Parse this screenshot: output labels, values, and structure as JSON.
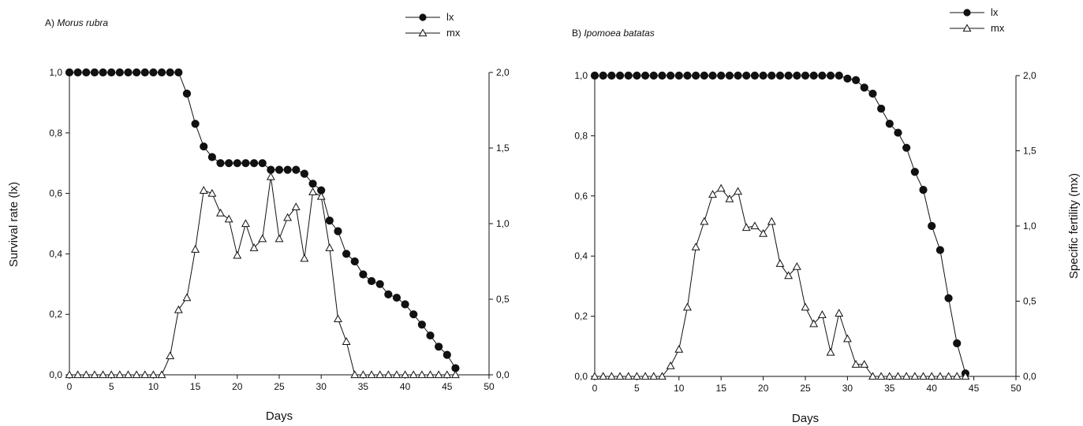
{
  "chart_data": [
    {
      "type": "line",
      "title_prefix": "A)",
      "title_species": "Morus rubra",
      "xlabel": "Days",
      "ylabel_left": "Survival rate (lx)",
      "ylabel_right": "",
      "xlim": [
        0,
        50
      ],
      "ylim_left": [
        0,
        1
      ],
      "ylim_right": [
        0,
        2
      ],
      "x_ticks": [
        "0",
        "5",
        "10",
        "15",
        "20",
        "25",
        "30",
        "35",
        "40",
        "45",
        "50"
      ],
      "y_left_ticks": [
        "0,0",
        "0,2",
        "0,4",
        "0,6",
        "0,8",
        "1,0"
      ],
      "y_right_ticks": [
        "0,0",
        "0,5",
        "1,0",
        "1,5",
        "2,0"
      ],
      "grid": false,
      "legend_position": "top-right",
      "series": [
        {
          "name": "lx",
          "axis": "left",
          "marker": "filled-circle",
          "x": [
            0,
            1,
            2,
            3,
            4,
            5,
            6,
            7,
            8,
            9,
            10,
            11,
            12,
            13,
            14,
            15,
            16,
            17,
            18,
            19,
            20,
            21,
            22,
            23,
            24,
            25,
            26,
            27,
            28,
            29,
            30,
            31,
            32,
            33,
            34,
            35,
            36,
            37,
            38,
            39,
            40,
            41,
            42,
            43,
            44,
            45,
            46
          ],
          "y": [
            1.0,
            1.0,
            1.0,
            1.0,
            1.0,
            1.0,
            1.0,
            1.0,
            1.0,
            1.0,
            1.0,
            1.0,
            1.0,
            1.0,
            0.93,
            0.83,
            0.755,
            0.72,
            0.7,
            0.7,
            0.7,
            0.7,
            0.7,
            0.7,
            0.678,
            0.678,
            0.678,
            0.678,
            0.665,
            0.632,
            0.61,
            0.51,
            0.475,
            0.4,
            0.375,
            0.332,
            0.31,
            0.3,
            0.266,
            0.255,
            0.233,
            0.2,
            0.166,
            0.13,
            0.093,
            0.066,
            0.022
          ]
        },
        {
          "name": "mx",
          "axis": "right",
          "marker": "open-triangle",
          "x": [
            0,
            1,
            2,
            3,
            4,
            5,
            6,
            7,
            8,
            9,
            10,
            11,
            12,
            13,
            14,
            15,
            16,
            17,
            18,
            19,
            20,
            21,
            22,
            23,
            24,
            25,
            26,
            27,
            28,
            29,
            30,
            31,
            32,
            33,
            34,
            35,
            36,
            37,
            38,
            39,
            40,
            41,
            42,
            43,
            44,
            45,
            46
          ],
          "y": [
            0,
            0,
            0,
            0,
            0,
            0,
            0,
            0,
            0,
            0,
            0,
            0,
            0.125,
            0.43,
            0.51,
            0.83,
            1.22,
            1.2,
            1.07,
            1.03,
            0.79,
            1.0,
            0.84,
            0.9,
            1.31,
            0.9,
            1.04,
            1.11,
            0.77,
            1.21,
            1.18,
            0.84,
            0.37,
            0.22,
            0,
            0,
            0,
            0,
            0,
            0,
            0,
            0,
            0,
            0,
            0,
            0,
            0
          ]
        }
      ]
    },
    {
      "type": "line",
      "title_prefix": "B)",
      "title_species": "Ipomoea batatas",
      "xlabel": "Days",
      "ylabel_left": "",
      "ylabel_right": "Specific fertility (mx)",
      "xlim": [
        0,
        50
      ],
      "ylim_left": [
        0,
        1
      ],
      "ylim_right": [
        0,
        2
      ],
      "x_ticks": [
        "0",
        "5",
        "10",
        "15",
        "20",
        "25",
        "30",
        "35",
        "40",
        "45",
        "50"
      ],
      "y_left_ticks": [
        "0,0",
        "0,2",
        "0,4",
        "0,6",
        "0,8",
        "1,0"
      ],
      "y_right_ticks": [
        "0,0",
        "0,5",
        "1,0",
        "1,5",
        "2,0"
      ],
      "grid": false,
      "legend_position": "top-right",
      "series": [
        {
          "name": "lx",
          "axis": "left",
          "marker": "filled-circle",
          "x": [
            0,
            1,
            2,
            3,
            4,
            5,
            6,
            7,
            8,
            9,
            10,
            11,
            12,
            13,
            14,
            15,
            16,
            17,
            18,
            19,
            20,
            21,
            22,
            23,
            24,
            25,
            26,
            27,
            28,
            29,
            30,
            31,
            32,
            33,
            34,
            35,
            36,
            37,
            38,
            39,
            40,
            41,
            42,
            43,
            44
          ],
          "y": [
            1.0,
            1.0,
            1.0,
            1.0,
            1.0,
            1.0,
            1.0,
            1.0,
            1.0,
            1.0,
            1.0,
            1.0,
            1.0,
            1.0,
            1.0,
            1.0,
            1.0,
            1.0,
            1.0,
            1.0,
            1.0,
            1.0,
            1.0,
            1.0,
            1.0,
            1.0,
            1.0,
            1.0,
            1.0,
            1.0,
            0.99,
            0.985,
            0.96,
            0.94,
            0.89,
            0.84,
            0.81,
            0.76,
            0.68,
            0.62,
            0.5,
            0.42,
            0.26,
            0.11,
            0.01
          ]
        },
        {
          "name": "mx",
          "axis": "right",
          "marker": "open-triangle",
          "x": [
            0,
            1,
            2,
            3,
            4,
            5,
            6,
            7,
            8,
            9,
            10,
            11,
            12,
            13,
            14,
            15,
            16,
            17,
            18,
            19,
            20,
            21,
            22,
            23,
            24,
            25,
            26,
            27,
            28,
            29,
            30,
            31,
            32,
            33,
            34,
            35,
            36,
            37,
            38,
            39,
            40,
            41,
            42,
            43,
            44
          ],
          "y": [
            0,
            0,
            0,
            0,
            0,
            0,
            0,
            0,
            0,
            0.07,
            0.18,
            0.46,
            0.86,
            1.03,
            1.21,
            1.25,
            1.18,
            1.23,
            0.99,
            1.0,
            0.95,
            1.03,
            0.75,
            0.67,
            0.73,
            0.46,
            0.35,
            0.41,
            0.16,
            0.42,
            0.25,
            0.08,
            0.08,
            0,
            0,
            0,
            0,
            0,
            0,
            0,
            0,
            0,
            0,
            0,
            0
          ]
        }
      ]
    }
  ]
}
